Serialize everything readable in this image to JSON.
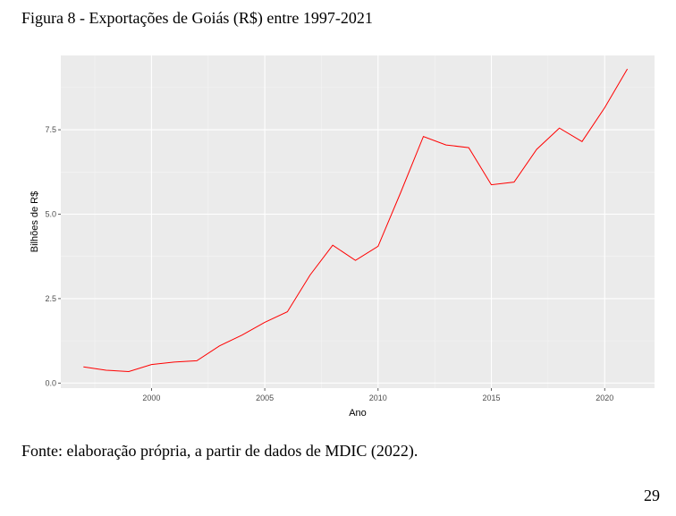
{
  "figure": {
    "title": "Figura 8 - Exportações de Goiás (R$) entre 1997-2021",
    "source": "Fonte: elaboração própria, a partir de dados de MDIC (2022).",
    "page_number": "29"
  },
  "chart_data": {
    "type": "line",
    "title": "",
    "xlabel": "Ano",
    "ylabel": "Bilhões de R$",
    "xlim": [
      1996,
      2022.2
    ],
    "ylim": [
      -0.15,
      9.7
    ],
    "x_ticks": [
      2000,
      2005,
      2010,
      2015,
      2020
    ],
    "x_tick_labels": [
      "2000",
      "2005",
      "2010",
      "2015",
      "2020"
    ],
    "y_ticks": [
      0,
      2.5,
      5,
      7.5
    ],
    "y_tick_labels": [
      "0.0",
      "2.5",
      "5.0",
      "7.5"
    ],
    "grid": true,
    "line_color": "#ff0000",
    "background": "#ebebeb",
    "x": [
      1997,
      1998,
      1999,
      2000,
      2001,
      2002,
      2003,
      2004,
      2005,
      2006,
      2007,
      2008,
      2009,
      2010,
      2011,
      2012,
      2013,
      2014,
      2015,
      2016,
      2017,
      2018,
      2019,
      2020,
      2021
    ],
    "values": [
      0.48,
      0.38,
      0.34,
      0.55,
      0.62,
      0.66,
      1.1,
      1.42,
      1.8,
      2.11,
      3.2,
      4.08,
      3.63,
      4.05,
      5.65,
      7.3,
      7.05,
      6.97,
      5.87,
      5.95,
      6.92,
      7.55,
      7.15,
      8.15,
      9.3
    ]
  }
}
